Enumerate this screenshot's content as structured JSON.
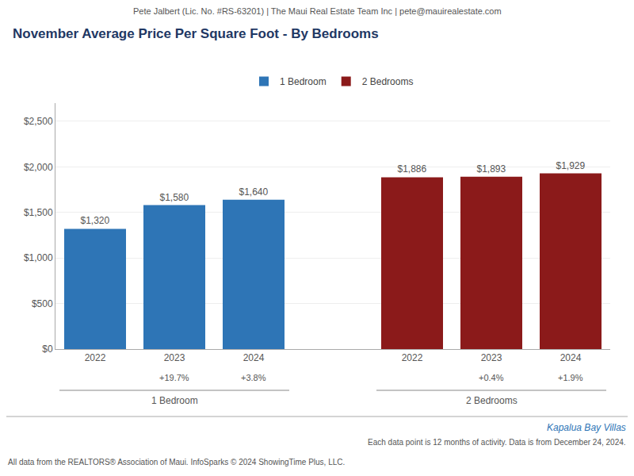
{
  "chart_data": {
    "type": "bar",
    "header": "Pete Jalbert (Lic. No. #RS-63201) | The Maui Real Estate Team Inc | pete@mauirealestate.com",
    "title": "November Average Price Per Square Foot - By Bedrooms",
    "categories": [
      "2022",
      "2023",
      "2024",
      null,
      "2022",
      "2023",
      "2024"
    ],
    "series": [
      {
        "name": "1 Bedroom",
        "color": "#2e75b6",
        "values": [
          1320,
          1580,
          1640,
          null,
          null,
          null,
          null
        ],
        "value_labels": [
          "$1,320",
          "$1,580",
          "$1,640",
          null,
          null,
          null,
          null
        ],
        "change_labels": [
          null,
          "+19.7%",
          "+3.8%",
          null,
          null,
          null,
          null
        ],
        "group_label": "1 Bedroom"
      },
      {
        "name": "2 Bedrooms",
        "color": "#8b1a1a",
        "values": [
          null,
          null,
          null,
          null,
          1886,
          1893,
          1929
        ],
        "value_labels": [
          null,
          null,
          null,
          null,
          "$1,886",
          "$1,893",
          "$1,929"
        ],
        "change_labels": [
          null,
          null,
          null,
          null,
          null,
          "+0.4%",
          "+1.9%"
        ],
        "group_label": "2 Bedrooms"
      }
    ],
    "ylim": [
      0,
      2700
    ],
    "yticks": [
      {
        "value": 0,
        "label": "$0"
      },
      {
        "value": 500,
        "label": "$500"
      },
      {
        "value": 1000,
        "label": "$1,000"
      },
      {
        "value": 1500,
        "label": "$1,500"
      },
      {
        "value": 2000,
        "label": "$2,000"
      },
      {
        "value": 2500,
        "label": "$2,500"
      }
    ],
    "grid": true,
    "legend": "top",
    "data_labels": true,
    "footnotes": [
      "Kapalua Bay Villas",
      "Each data point is 12 months of activity. Data is from December 24, 2024.",
      "All data from the REALTORS® Association of Maui. InfoSparks © 2024 ShowingTime Plus, LLC."
    ]
  }
}
